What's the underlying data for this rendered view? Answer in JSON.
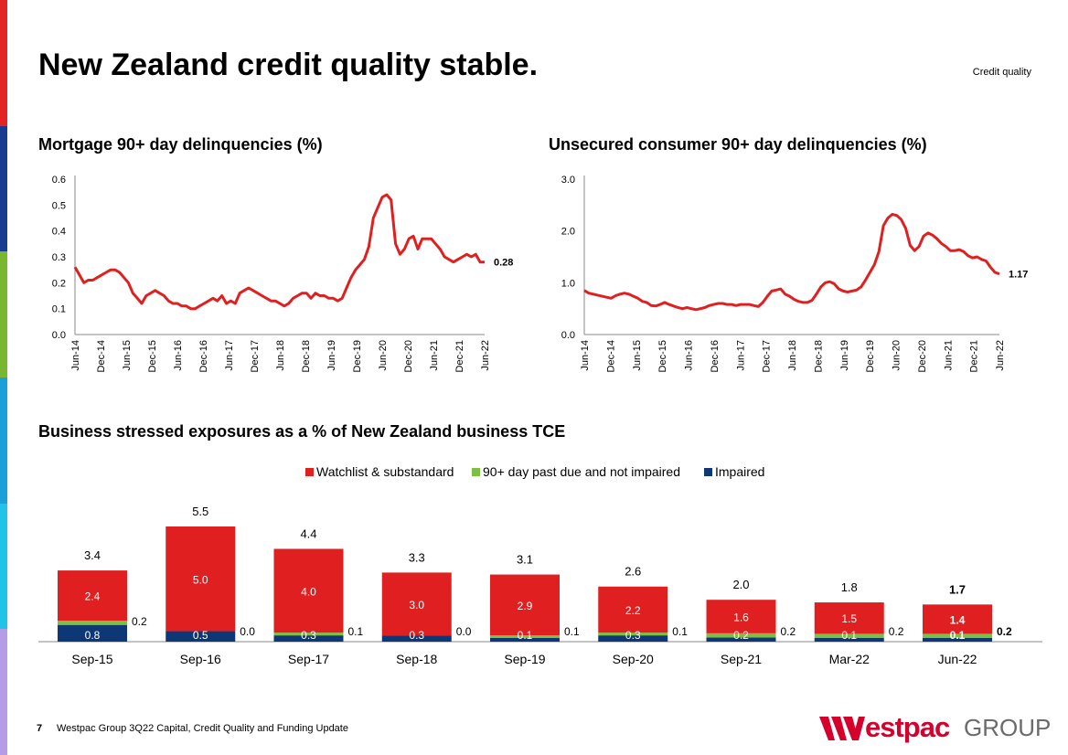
{
  "page": {
    "title": "New Zealand credit quality stable.",
    "tag": "Credit quality",
    "page_number": "7",
    "footer": "Westpac Group 3Q22 Capital, Credit Quality and Funding Update",
    "logo_word": "estpac",
    "logo_group": "GROUP",
    "stripe_colors": [
      "#e22424",
      "#1a3c8f",
      "#7ab731",
      "#1aa0d8",
      "#21c3e8",
      "#b59ce6"
    ],
    "colors": {
      "red": "#e02020",
      "green": "#7bc043",
      "navy": "#0d3875",
      "line_red": "#e02020"
    }
  },
  "chart_data": [
    {
      "id": "mortgage",
      "type": "line",
      "title": "Mortgage 90+ day delinquencies (%)",
      "x_ticks": [
        "Jun-14",
        "Dec-14",
        "Jun-15",
        "Dec-15",
        "Jun-16",
        "Dec-16",
        "Jun-17",
        "Dec-17",
        "Jun-18",
        "Dec-18",
        "Jun-19",
        "Dec-19",
        "Jun-20",
        "Dec-20",
        "Jun-21",
        "Dec-21",
        "Jun-22"
      ],
      "y_ticks": [
        "0.0",
        "0.1",
        "0.2",
        "0.3",
        "0.4",
        "0.5",
        "0.6"
      ],
      "ylim": [
        0,
        0.6
      ],
      "last_label": "0.28",
      "series": [
        {
          "values": [
            0.26,
            0.23,
            0.2,
            0.21,
            0.21,
            0.22,
            0.23,
            0.24,
            0.25,
            0.25,
            0.24,
            0.22,
            0.2,
            0.16,
            0.14,
            0.12,
            0.15,
            0.16,
            0.17,
            0.16,
            0.15,
            0.13,
            0.12,
            0.12,
            0.11,
            0.11,
            0.1,
            0.1,
            0.11,
            0.12,
            0.13,
            0.14,
            0.13,
            0.15,
            0.12,
            0.13,
            0.12,
            0.16,
            0.17,
            0.18,
            0.17,
            0.16,
            0.15,
            0.14,
            0.13,
            0.13,
            0.12,
            0.11,
            0.12,
            0.14,
            0.15,
            0.16,
            0.16,
            0.14,
            0.16,
            0.15,
            0.15,
            0.14,
            0.14,
            0.13,
            0.14,
            0.18,
            0.22,
            0.25,
            0.27,
            0.29,
            0.34,
            0.45,
            0.49,
            0.53,
            0.54,
            0.52,
            0.35,
            0.31,
            0.33,
            0.37,
            0.38,
            0.33,
            0.37,
            0.37,
            0.37,
            0.35,
            0.33,
            0.3,
            0.29,
            0.28,
            0.29,
            0.3,
            0.31,
            0.3,
            0.31,
            0.28,
            0.28
          ]
        }
      ]
    },
    {
      "id": "unsecured",
      "type": "line",
      "title": "Unsecured consumer 90+ day delinquencies (%)",
      "x_ticks": [
        "Jun-14",
        "Dec-14",
        "Jun-15",
        "Dec-15",
        "Jun-16",
        "Dec-16",
        "Jun-17",
        "Dec-17",
        "Jun-18",
        "Dec-18",
        "Jun-19",
        "Dec-19",
        "Jun-20",
        "Dec-20",
        "Jun-21",
        "Dec-21",
        "Jun-22"
      ],
      "y_ticks": [
        "0.0",
        "1.0",
        "2.0",
        "3.0"
      ],
      "ylim": [
        0,
        3
      ],
      "last_label": "1.17",
      "series": [
        {
          "values": [
            0.85,
            0.8,
            0.78,
            0.76,
            0.74,
            0.72,
            0.7,
            0.75,
            0.78,
            0.8,
            0.78,
            0.74,
            0.7,
            0.64,
            0.62,
            0.56,
            0.55,
            0.58,
            0.62,
            0.58,
            0.55,
            0.52,
            0.5,
            0.52,
            0.5,
            0.48,
            0.5,
            0.52,
            0.56,
            0.58,
            0.6,
            0.6,
            0.58,
            0.58,
            0.56,
            0.58,
            0.58,
            0.58,
            0.56,
            0.54,
            0.62,
            0.74,
            0.84,
            0.86,
            0.88,
            0.78,
            0.74,
            0.68,
            0.64,
            0.62,
            0.62,
            0.66,
            0.78,
            0.92,
            1.0,
            1.02,
            0.98,
            0.88,
            0.84,
            0.82,
            0.84,
            0.86,
            0.92,
            1.05,
            1.2,
            1.35,
            1.6,
            2.1,
            2.25,
            2.32,
            2.3,
            2.22,
            2.05,
            1.72,
            1.62,
            1.7,
            1.9,
            1.96,
            1.92,
            1.85,
            1.76,
            1.7,
            1.62,
            1.62,
            1.64,
            1.6,
            1.52,
            1.48,
            1.5,
            1.45,
            1.42,
            1.3,
            1.2,
            1.17
          ]
        }
      ]
    },
    {
      "id": "business",
      "type": "bar",
      "title": "Business stressed exposures as a % of New Zealand business TCE",
      "categories": [
        "Sep-15",
        "Sep-16",
        "Sep-17",
        "Sep-18",
        "Sep-19",
        "Sep-20",
        "Sep-21",
        "Mar-22",
        "Jun-22"
      ],
      "series": [
        {
          "name": "Watchlist & substandard",
          "values": [
            2.4,
            5.0,
            4.0,
            3.0,
            2.9,
            2.2,
            1.6,
            1.5,
            1.4
          ],
          "labels": [
            "2.4",
            "5.0",
            "4.0",
            "3.0",
            "2.9",
            "2.2",
            "1.6",
            "1.5",
            "1.4"
          ]
        },
        {
          "name": "90+ day past due and not impaired",
          "values": [
            0.2,
            0.0,
            0.1,
            0.0,
            0.1,
            0.1,
            0.2,
            0.2,
            0.2
          ],
          "labels": [
            "0.2",
            "0.0",
            "0.1",
            "0.0",
            "0.1",
            "0.1",
            "0.2",
            "0.2",
            "0.2"
          ]
        },
        {
          "name": "Impaired",
          "values": [
            0.8,
            0.5,
            0.3,
            0.3,
            0.1,
            0.3,
            0.2,
            0.1,
            0.1
          ],
          "labels": [
            "0.8",
            "0.5",
            "0.3",
            "0.3",
            "0.1",
            "0.3",
            "0.2",
            "0.1",
            "0.1"
          ]
        }
      ],
      "totals": [
        "3.4",
        "5.5",
        "4.4",
        "3.3",
        "3.1",
        "2.6",
        "2.0",
        "1.8",
        "1.7"
      ],
      "ylim": [
        0,
        5.5
      ],
      "legend": "top-center",
      "highlight_last": true
    }
  ]
}
